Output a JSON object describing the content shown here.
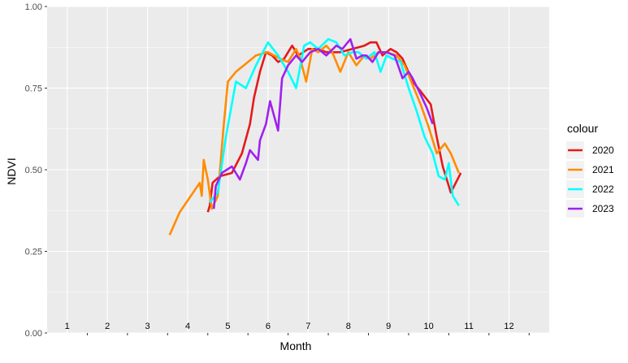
{
  "chart_data": {
    "type": "line",
    "xlabel": "Month",
    "ylabel": "NDVI",
    "xlim": [
      0,
      12.5
    ],
    "ylim": [
      0,
      1
    ],
    "y_ticks": [
      "0.00",
      "0.25",
      "0.50",
      "0.75",
      "1.00"
    ],
    "y_tick_values": [
      0,
      0.25,
      0.5,
      0.75,
      1
    ],
    "x_tick_labels": [
      "1",
      "2",
      "3",
      "4",
      "5",
      "6",
      "7",
      "8",
      "9",
      "10",
      "11",
      "12"
    ],
    "x_tick_label_positions": [
      0.5,
      1.5,
      2.5,
      3.5,
      4.5,
      5.5,
      6.5,
      7.5,
      8.5,
      9.5,
      10.5,
      11.5
    ],
    "x_tick_marks": [
      1,
      2,
      3,
      4,
      5,
      6,
      7,
      8,
      9,
      10,
      11,
      12
    ],
    "grid": true,
    "panel_background": "#EBEBEB",
    "legend": {
      "title": "colour",
      "placement": "right"
    },
    "series": [
      {
        "name": "2020",
        "color": "#E41A1C",
        "x": [
          4.0,
          4.05,
          4.12,
          4.3,
          4.6,
          4.85,
          5.05,
          5.15,
          5.3,
          5.45,
          5.6,
          5.75,
          5.9,
          6.1,
          6.25,
          6.5,
          6.75,
          6.95,
          7.3,
          7.6,
          7.9,
          8.05,
          8.2,
          8.35,
          8.55,
          8.7,
          8.85,
          9.1,
          9.3,
          9.55,
          9.7,
          9.85,
          10.05,
          10.3
        ],
        "y": [
          0.37,
          0.39,
          0.46,
          0.48,
          0.49,
          0.55,
          0.64,
          0.72,
          0.8,
          0.86,
          0.85,
          0.83,
          0.84,
          0.88,
          0.85,
          0.87,
          0.87,
          0.86,
          0.86,
          0.87,
          0.88,
          0.89,
          0.89,
          0.85,
          0.87,
          0.86,
          0.84,
          0.77,
          0.74,
          0.7,
          0.6,
          0.51,
          0.43,
          0.49
        ]
      },
      {
        "name": "2021",
        "color": "#FF8C00",
        "x": [
          3.05,
          3.3,
          3.8,
          3.85,
          3.9,
          4.0,
          4.1,
          4.25,
          4.4,
          4.5,
          4.7,
          4.9,
          5.2,
          5.5,
          5.8,
          6.0,
          6.2,
          6.3,
          6.45,
          6.6,
          6.75,
          6.95,
          7.1,
          7.3,
          7.5,
          7.7,
          7.9,
          8.05,
          8.25,
          8.45,
          8.7,
          8.9,
          9.1,
          9.3,
          9.5,
          9.7,
          9.9,
          10.05,
          10.25
        ],
        "y": [
          0.3,
          0.37,
          0.46,
          0.42,
          0.53,
          0.47,
          0.38,
          0.42,
          0.64,
          0.77,
          0.8,
          0.82,
          0.85,
          0.86,
          0.84,
          0.83,
          0.87,
          0.84,
          0.77,
          0.87,
          0.86,
          0.88,
          0.86,
          0.8,
          0.86,
          0.82,
          0.85,
          0.84,
          0.86,
          0.86,
          0.85,
          0.82,
          0.76,
          0.7,
          0.63,
          0.55,
          0.58,
          0.55,
          0.49
        ]
      },
      {
        "name": "2022",
        "color": "#00FFFF",
        "x": [
          4.05,
          4.25,
          4.45,
          4.7,
          4.95,
          5.2,
          5.5,
          5.75,
          6.0,
          6.2,
          6.4,
          6.55,
          6.75,
          7.0,
          7.2,
          7.4,
          7.6,
          7.75,
          7.95,
          8.15,
          8.3,
          8.45,
          8.6,
          8.8,
          9.0,
          9.2,
          9.4,
          9.6,
          9.75,
          9.9,
          10.0,
          10.1,
          10.25
        ],
        "y": [
          0.4,
          0.43,
          0.6,
          0.77,
          0.75,
          0.82,
          0.89,
          0.85,
          0.8,
          0.75,
          0.88,
          0.89,
          0.87,
          0.9,
          0.89,
          0.85,
          0.86,
          0.86,
          0.84,
          0.86,
          0.8,
          0.85,
          0.84,
          0.83,
          0.75,
          0.68,
          0.6,
          0.55,
          0.48,
          0.47,
          0.52,
          0.42,
          0.39
        ]
      },
      {
        "name": "2023",
        "color": "#A020F0",
        "x": [
          4.15,
          4.2,
          4.35,
          4.6,
          4.8,
          4.95,
          5.05,
          5.25,
          5.3,
          5.45,
          5.55,
          5.75,
          5.85,
          6.0,
          6.2,
          6.35,
          6.55,
          6.75,
          6.95,
          7.2,
          7.35,
          7.55,
          7.7,
          7.85,
          7.95,
          8.1,
          8.25,
          8.35,
          8.45,
          8.65,
          8.85,
          9.0,
          9.1,
          9.3,
          9.45,
          9.6
        ],
        "y": [
          0.38,
          0.45,
          0.49,
          0.51,
          0.47,
          0.52,
          0.56,
          0.53,
          0.59,
          0.64,
          0.71,
          0.62,
          0.78,
          0.82,
          0.85,
          0.83,
          0.86,
          0.87,
          0.85,
          0.88,
          0.87,
          0.9,
          0.84,
          0.85,
          0.85,
          0.83,
          0.86,
          0.86,
          0.86,
          0.85,
          0.78,
          0.8,
          0.78,
          0.73,
          0.69,
          0.64
        ]
      }
    ]
  }
}
